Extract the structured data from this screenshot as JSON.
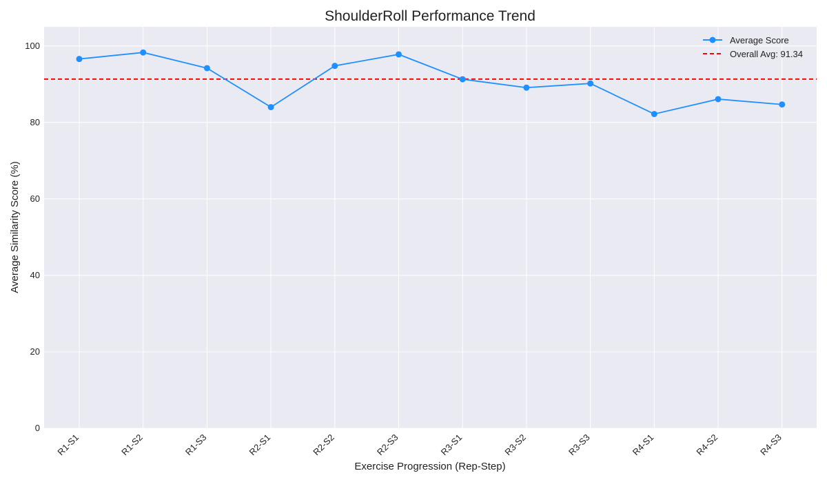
{
  "chart_data": {
    "type": "line",
    "title": "ShoulderRoll Performance Trend",
    "xlabel": "Exercise Progression (Rep-Step)",
    "ylabel": "Average Similarity Score (%)",
    "categories": [
      "R1-S1",
      "R1-S2",
      "R1-S3",
      "R2-S1",
      "R2-S2",
      "R2-S3",
      "R3-S1",
      "R3-S2",
      "R3-S3",
      "R4-S1",
      "R4-S2",
      "R4-S3"
    ],
    "series": [
      {
        "name": "Average Score",
        "color": "#1e90ff",
        "marker": "circle",
        "values": [
          96.6,
          98.3,
          94.2,
          84.0,
          94.8,
          97.8,
          91.3,
          89.1,
          90.2,
          82.2,
          86.1,
          84.7
        ]
      }
    ],
    "reference_line": {
      "label": "Overall Avg: 91.34",
      "value": 91.34,
      "color": "#ff0000",
      "style": "dashed"
    },
    "ylim": [
      0,
      105
    ],
    "yticks": [
      0,
      20,
      40,
      60,
      80,
      100
    ],
    "grid": true,
    "legend_position": "top-right",
    "plot_background": "#eaeaf2"
  }
}
